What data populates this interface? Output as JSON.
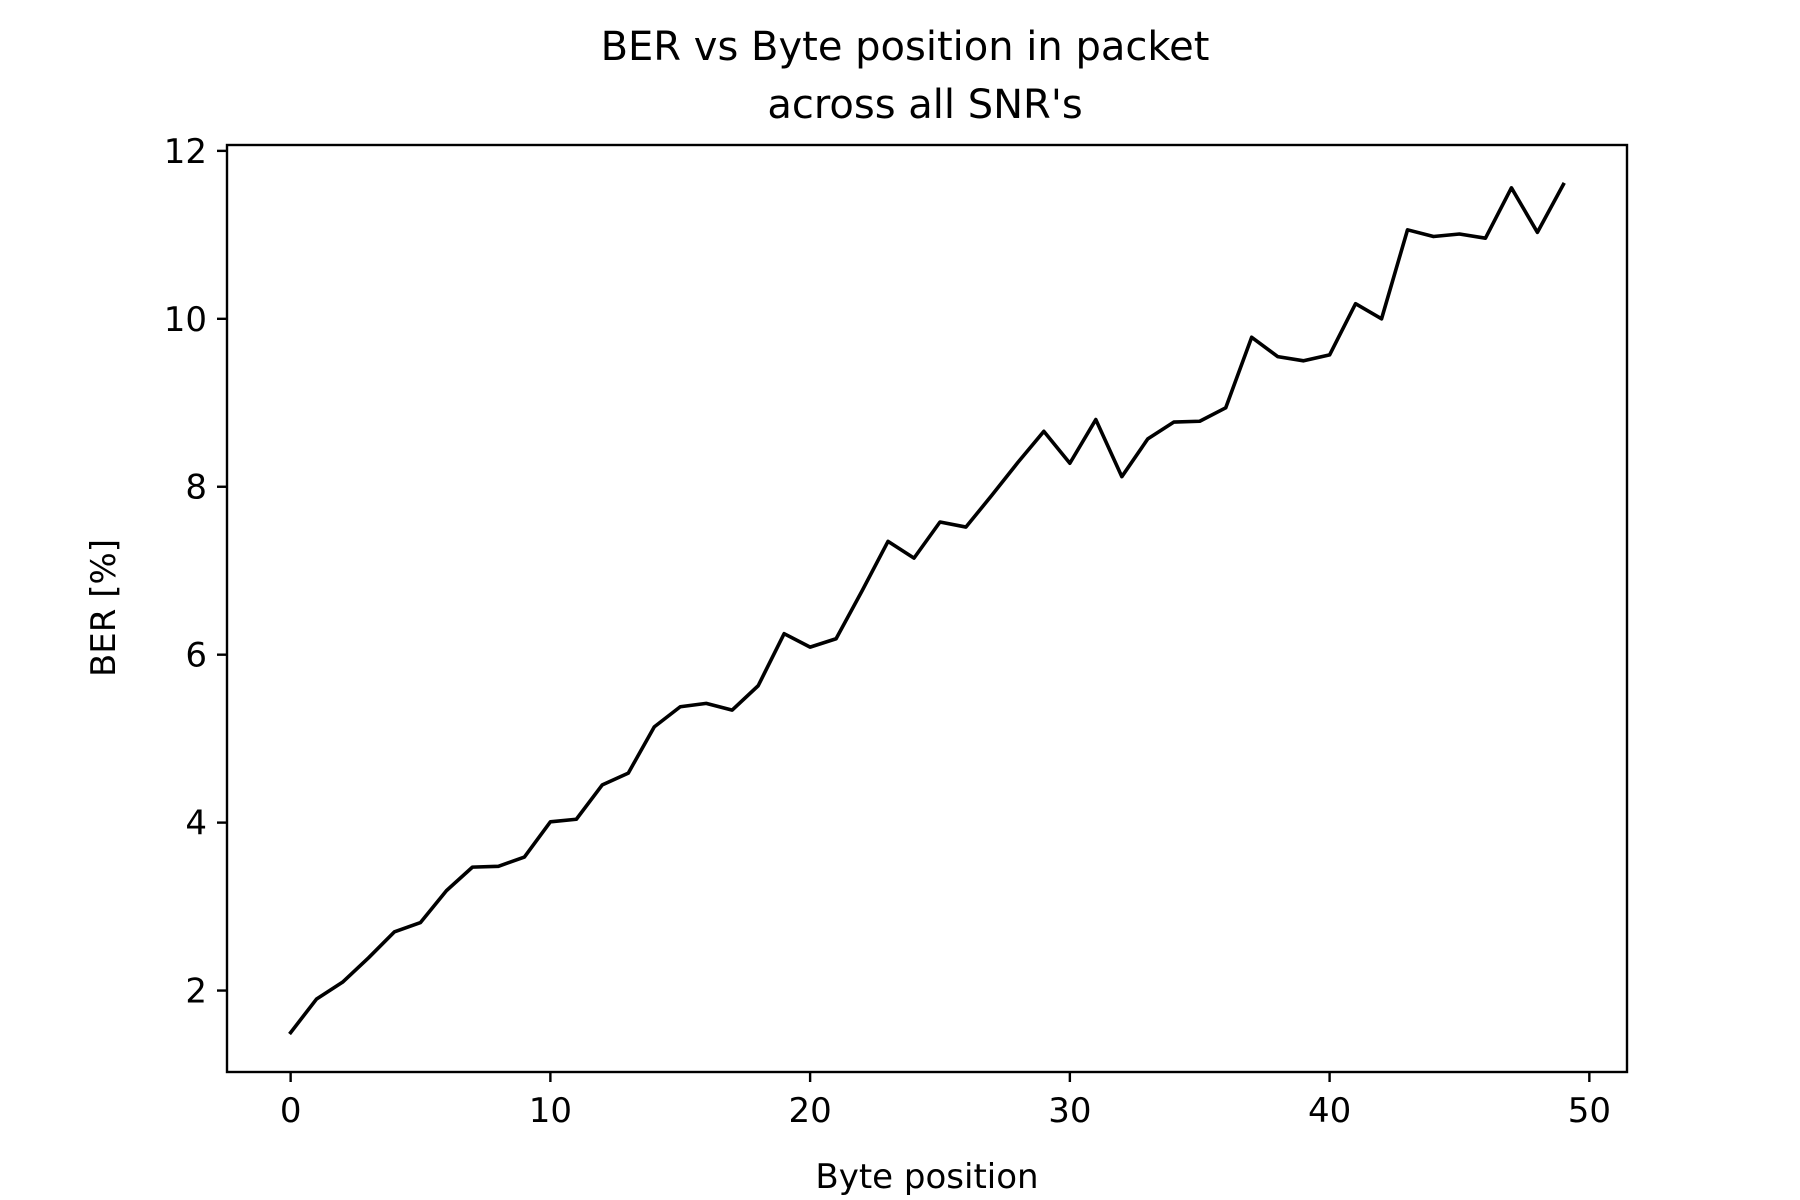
{
  "chart_data": {
    "type": "line",
    "title": [
      "BER vs Byte position in packet",
      "across all SNR's"
    ],
    "xlabel": "Byte position",
    "ylabel": "BER [%]",
    "xlim": [
      -2.45,
      51.45
    ],
    "ylim": [
      1.03,
      12.07
    ],
    "xticks": [
      0,
      10,
      20,
      30,
      40,
      50
    ],
    "yticks": [
      2,
      4,
      6,
      8,
      10,
      12
    ],
    "grid": false,
    "line_color": "#000000",
    "series": [
      {
        "x": [
          0,
          1,
          2,
          3,
          4,
          5,
          6,
          7,
          8,
          9,
          10,
          11,
          12,
          13,
          14,
          15,
          16,
          17,
          18,
          19,
          20,
          21,
          22,
          23,
          24,
          25,
          26,
          27,
          28,
          29,
          30,
          31,
          32,
          33,
          34,
          35,
          36,
          37,
          38,
          39,
          40,
          41,
          42,
          43,
          44,
          45,
          46,
          47,
          48,
          49
        ],
        "y": [
          1.5,
          1.9,
          2.1,
          2.39,
          2.7,
          2.81,
          3.19,
          3.47,
          3.48,
          3.59,
          4.01,
          4.04,
          4.45,
          4.59,
          5.14,
          5.38,
          5.42,
          5.34,
          5.63,
          6.25,
          6.09,
          6.19,
          6.76,
          7.35,
          7.15,
          7.58,
          7.52,
          7.9,
          8.29,
          8.66,
          8.28,
          8.8,
          8.12,
          8.57,
          8.77,
          8.78,
          8.94,
          9.78,
          9.55,
          9.5,
          9.57,
          10.18,
          10.0,
          11.06,
          10.98,
          11.01,
          10.96,
          11.56,
          11.03,
          11.6
        ]
      }
    ]
  }
}
